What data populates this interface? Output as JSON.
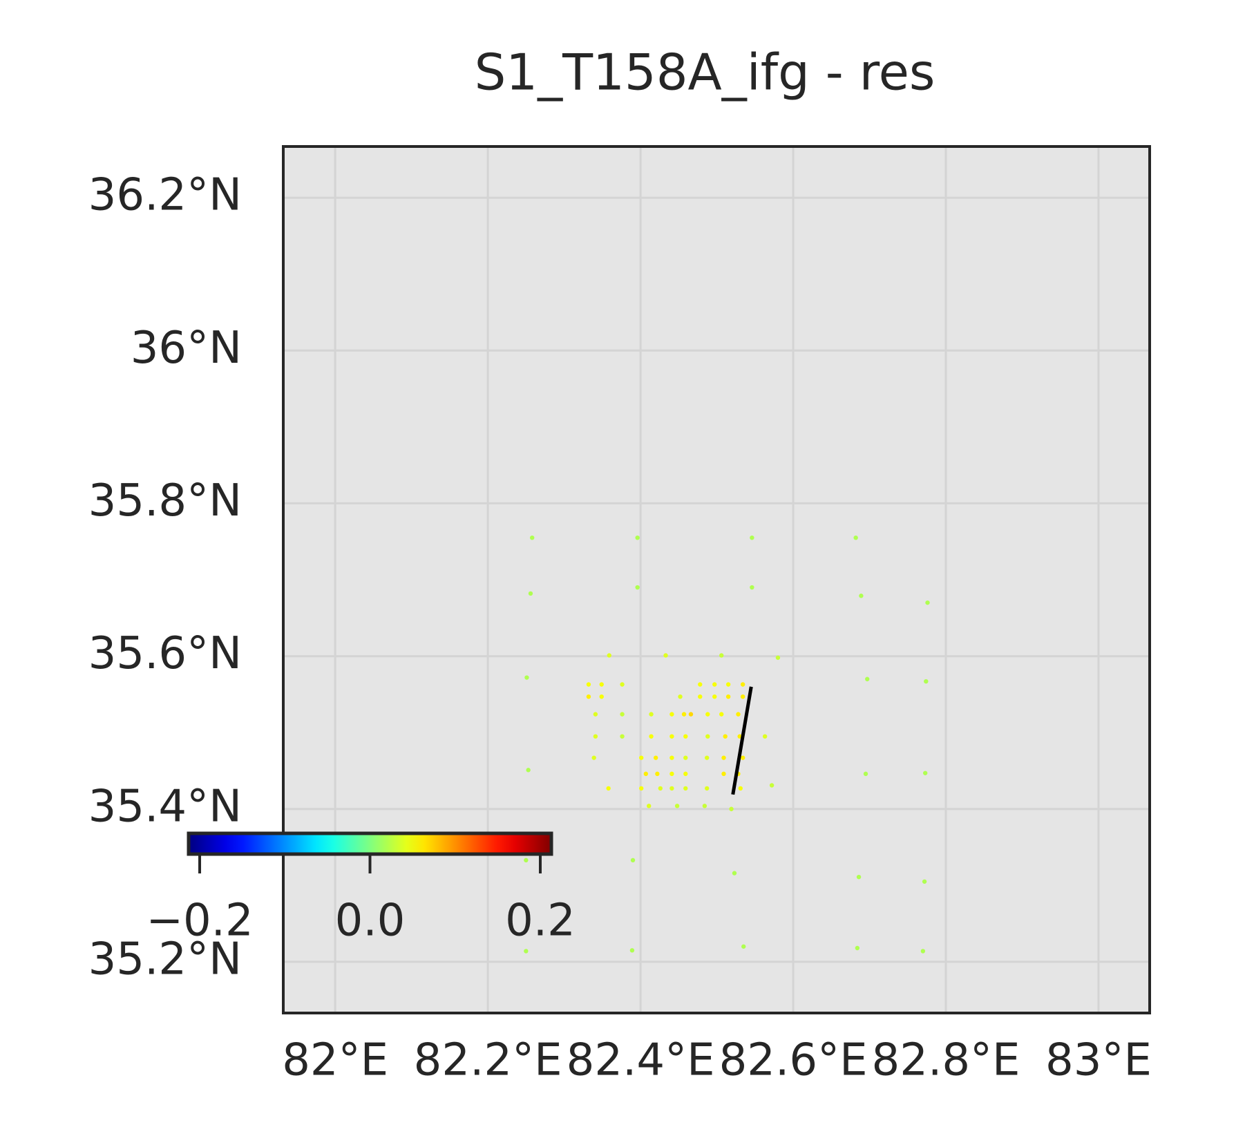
{
  "chart_data": {
    "type": "scatter",
    "title": "S1_T158A_ifg - res",
    "xlim": [
      81.932,
      83.067
    ],
    "ylim": [
      35.133,
      36.267
    ],
    "xticks": [
      {
        "value": 82,
        "label": "82°E"
      },
      {
        "value": 82.2,
        "label": "82.2°E"
      },
      {
        "value": 82.4,
        "label": "82.4°E"
      },
      {
        "value": 82.6,
        "label": "82.6°E"
      },
      {
        "value": 82.8,
        "label": "82.8°E"
      },
      {
        "value": 83,
        "label": "83°E"
      }
    ],
    "yticks": [
      {
        "value": 35.2,
        "label": "35.2°N"
      },
      {
        "value": 35.4,
        "label": "35.4°N"
      },
      {
        "value": 35.6,
        "label": "35.6°N"
      },
      {
        "value": 35.8,
        "label": "35.8°N"
      },
      {
        "value": 36,
        "label": "36°N"
      },
      {
        "value": 36.2,
        "label": "36.2°N"
      }
    ],
    "grid": true,
    "colorbar": {
      "clim": [
        -0.213,
        0.213
      ],
      "ticks": [
        {
          "value": -0.2,
          "label": "−0.2"
        },
        {
          "value": 0,
          "label": "0.0"
        },
        0.2
      ],
      "colormap": "jet"
    },
    "x": [
      82.258,
      82.396,
      82.546,
      82.682,
      82.256,
      82.396,
      82.546,
      82.689,
      82.776,
      82.251,
      82.359,
      82.433,
      82.506,
      82.58,
      82.697,
      82.774,
      82.253,
      82.695,
      82.773,
      82.572,
      82.25,
      82.39,
      82.523,
      82.686,
      82.772,
      82.25,
      82.389,
      82.535,
      82.684,
      82.77,
      82.519,
      82.332,
      82.349,
      82.376,
      82.478,
      82.497,
      82.515,
      82.534,
      82.332,
      82.349,
      82.452,
      82.478,
      82.497,
      82.515,
      82.534,
      82.341,
      82.376,
      82.414,
      82.441,
      82.457,
      82.466,
      82.488,
      82.506,
      82.528,
      82.341,
      82.376,
      82.414,
      82.441,
      82.459,
      82.488,
      82.511,
      82.53,
      82.563,
      82.339,
      82.401,
      82.42,
      82.441,
      82.459,
      82.487,
      82.509,
      82.534,
      82.407,
      82.422,
      82.441,
      82.459,
      82.509,
      82.528,
      82.358,
      82.401,
      82.426,
      82.441,
      82.459,
      82.487,
      82.531,
      82.411,
      82.448,
      82.484
    ],
    "y": [
      35.755,
      35.755,
      35.755,
      35.755,
      35.682,
      35.69,
      35.69,
      35.679,
      35.67,
      35.572,
      35.601,
      35.601,
      35.601,
      35.598,
      35.57,
      35.567,
      35.451,
      35.446,
      35.447,
      35.431,
      35.333,
      35.333,
      35.316,
      35.311,
      35.305,
      35.214,
      35.215,
      35.22,
      35.218,
      35.214,
      35.4,
      35.563,
      35.563,
      35.563,
      35.563,
      35.563,
      35.563,
      35.563,
      35.547,
      35.547,
      35.547,
      35.547,
      35.547,
      35.547,
      35.547,
      35.524,
      35.524,
      35.524,
      35.524,
      35.524,
      35.524,
      35.524,
      35.524,
      35.524,
      35.495,
      35.495,
      35.495,
      35.495,
      35.495,
      35.495,
      35.495,
      35.495,
      35.495,
      35.467,
      35.467,
      35.467,
      35.467,
      35.467,
      35.467,
      35.467,
      35.467,
      35.446,
      35.446,
      35.446,
      35.446,
      35.446,
      35.446,
      35.427,
      35.427,
      35.427,
      35.427,
      35.427,
      35.427,
      35.427,
      35.404,
      35.404,
      35.404
    ],
    "values": [
      0.02,
      0.02,
      0.02,
      0.02,
      0.02,
      0.02,
      0.02,
      0.02,
      0.02,
      0.02,
      0.04,
      0.04,
      0.03,
      0.03,
      0.02,
      0.02,
      0.02,
      0.02,
      0.02,
      0.03,
      0.02,
      0.02,
      0.02,
      0.02,
      0.02,
      0.02,
      0.02,
      0.02,
      0.02,
      0.02,
      0.03,
      0.05,
      0.05,
      0.04,
      0.05,
      0.05,
      0.05,
      0.06,
      0.06,
      0.05,
      0.04,
      0.05,
      0.05,
      0.06,
      0.06,
      0.04,
      0.03,
      0.04,
      0.05,
      0.06,
      0.07,
      0.05,
      0.05,
      0.06,
      0.04,
      0.03,
      0.05,
      0.05,
      0.05,
      0.04,
      0.06,
      0.06,
      0.04,
      0.04,
      0.05,
      0.06,
      0.05,
      0.04,
      0.04,
      0.06,
      0.06,
      0.06,
      0.06,
      0.05,
      0.05,
      0.06,
      0.06,
      0.05,
      0.05,
      0.04,
      0.04,
      0.04,
      0.04,
      0.05,
      0.04,
      0.03,
      0.03
    ],
    "trace": {
      "x": [
        82.545,
        82.521
      ],
      "y": [
        35.56,
        35.419
      ],
      "color": "#000000"
    }
  }
}
